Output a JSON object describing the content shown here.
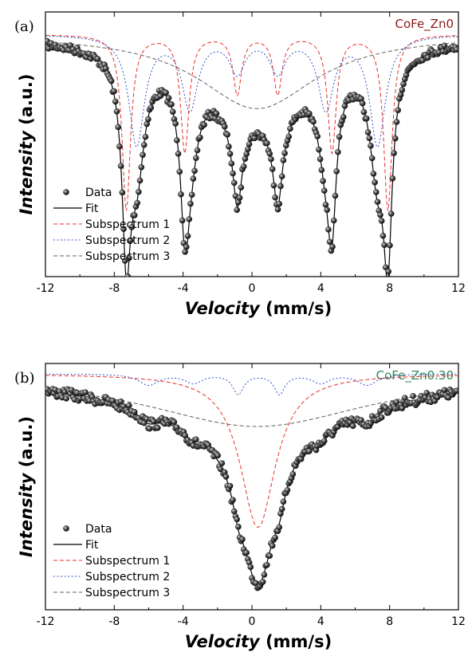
{
  "chart_data": [
    {
      "type": "scatter",
      "panel_label": "(a)",
      "sample_label": "CoFe_Zn0",
      "sample_color": "#8b1a1a",
      "xlabel": "Velocity (mm/s)",
      "ylabel": "Intensity (a.u.)",
      "xlim": [
        -12,
        12
      ],
      "x_ticks": [
        "-12",
        "-8",
        "-4",
        "0",
        "4",
        "8",
        "12"
      ],
      "y_ticks_labeled": false,
      "legend_position": "bottom-left",
      "legend": [
        "Data",
        "Fit",
        "Subspectrum 1",
        "Subspectrum 2",
        "Subspectrum 3"
      ],
      "series": [
        {
          "name": "Subspectrum 1",
          "style": "dashed",
          "color": "#e8302a",
          "lines": [
            [
              -7.3,
              0.99,
              0.3
            ],
            [
              -3.9,
              0.66,
              0.3
            ],
            [
              -0.85,
              0.33,
              0.3
            ],
            [
              1.5,
              0.33,
              0.3
            ],
            [
              4.65,
              0.66,
              0.3
            ],
            [
              7.9,
              0.99,
              0.3
            ]
          ]
        },
        {
          "name": "Subspectrum 2",
          "style": "dotted",
          "color": "#3050c8",
          "lines": [
            [
              -6.7,
              0.62,
              0.55
            ],
            [
              -3.6,
              0.41,
              0.55
            ],
            [
              -0.85,
              0.2,
              0.55
            ],
            [
              1.5,
              0.2,
              0.55
            ],
            [
              4.3,
              0.41,
              0.55
            ],
            [
              7.3,
              0.62,
              0.55
            ]
          ]
        },
        {
          "name": "Subspectrum 3",
          "style": "dashed",
          "color": "#606060",
          "lines": [
            [
              0.3,
              0.42,
              4.2
            ]
          ]
        }
      ]
    },
    {
      "type": "scatter",
      "panel_label": "(b)",
      "sample_label": "CoFe_Zn0.30",
      "sample_color": "#2e8b57",
      "xlabel": "Velocity (mm/s)",
      "ylabel": "Intensity (a.u.)",
      "xlim": [
        -12,
        12
      ],
      "x_ticks": [
        "-12",
        "-8",
        "-4",
        "0",
        "4",
        "8",
        "12"
      ],
      "y_ticks_labeled": false,
      "legend_position": "bottom-left",
      "legend": [
        "Data",
        "Fit",
        "Subspectrum 1",
        "Subspectrum 2",
        "Subspectrum 3"
      ],
      "series": [
        {
          "name": "Subspectrum 1",
          "style": "dashed",
          "color": "#e8302a",
          "lines": [
            [
              0.35,
              0.7,
              1.25
            ]
          ]
        },
        {
          "name": "Subspectrum 2",
          "style": "dotted",
          "color": "#3050c8",
          "lines": [
            [
              -6.0,
              0.05,
              0.7
            ],
            [
              -3.4,
              0.04,
              0.6
            ],
            [
              -0.8,
              0.09,
              0.38
            ],
            [
              1.6,
              0.09,
              0.38
            ],
            [
              4.0,
              0.04,
              0.6
            ],
            [
              6.7,
              0.05,
              0.7
            ]
          ]
        },
        {
          "name": "Subspectrum 3",
          "style": "dashed",
          "color": "#606060",
          "lines": [
            [
              0.3,
              0.24,
              8.0
            ]
          ]
        }
      ]
    }
  ]
}
